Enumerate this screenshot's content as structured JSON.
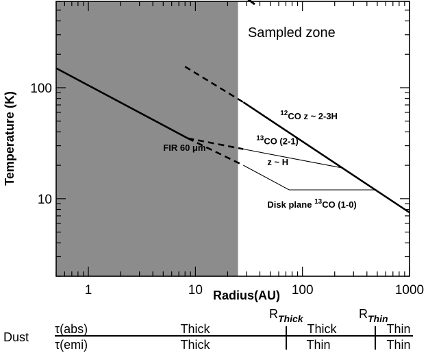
{
  "chart_data": {
    "type": "line",
    "xlabel": "Radius(AU)",
    "ylabel": "Temperature (K)",
    "xscale": "log",
    "yscale": "log",
    "xlim": [
      0.5,
      1000
    ],
    "ylim": [
      2,
      600
    ],
    "x_ticks": [
      {
        "value": 1,
        "label": "1"
      },
      {
        "value": 10,
        "label": "10"
      },
      {
        "value": 100,
        "label": "100"
      },
      {
        "value": 1000,
        "label": "1000"
      }
    ],
    "y_ticks": [
      {
        "value": 10,
        "label": "10"
      },
      {
        "value": 100,
        "label": "100"
      }
    ],
    "shaded_region": {
      "x_from": 0.5,
      "x_to": 25,
      "color": "#8c8c8c"
    },
    "sampled_zone": {
      "label": "Sampled zone",
      "arrow_from_x": 1000,
      "arrow_to_x": 30
    },
    "series": [
      {
        "style": "thick-solid",
        "points": [
          [
            0.5,
            150
          ],
          [
            8.5,
            35
          ]
        ]
      },
      {
        "style": "thick-dashed",
        "points": [
          [
            8.5,
            35
          ],
          [
            28,
            28
          ]
        ]
      },
      {
        "style": "thick-dashed",
        "points": [
          [
            8.5,
            35
          ],
          [
            28,
            20
          ]
        ]
      },
      {
        "style": "thick-dashed",
        "points": [
          [
            8,
            155
          ],
          [
            28,
            74
          ]
        ]
      },
      {
        "style": "thick-solid",
        "points": [
          [
            28,
            74
          ],
          [
            1000,
            7.5
          ]
        ]
      },
      {
        "style": "thin-solid",
        "points": [
          [
            28,
            28
          ],
          [
            230,
            19
          ]
        ]
      },
      {
        "style": "thin-solid",
        "points": [
          [
            28,
            20
          ],
          [
            75,
            12
          ],
          [
            480,
            12
          ]
        ]
      }
    ],
    "annotations": [
      {
        "text": "Sampled zone",
        "x": 70,
        "y": 450
      },
      {
        "text": "FIR 60 μm",
        "x": 5,
        "y": 27
      },
      {
        "main": "CO  z ~ 2-3H",
        "sup": "12",
        "x": 62,
        "y": 52
      },
      {
        "main": "CO (2-1)",
        "sup": "13",
        "x": 37,
        "y": 31
      },
      {
        "text": "z ~ H",
        "x": 47,
        "y": 20
      },
      {
        "main": "Disk plane ",
        "sup": "13",
        "tail": "CO (1-0)",
        "x": 47,
        "y": 8.3
      }
    ]
  },
  "dust_table": {
    "label": "Dust",
    "row1_label": "τ(abs)",
    "row2_label": "τ(emi)",
    "boundaries": [
      {
        "sub": "Thick",
        "prefix": "R"
      },
      {
        "sub": "Thin",
        "prefix": "R"
      }
    ],
    "row1_values": [
      "Thick",
      "Thick",
      "Thin"
    ],
    "row2_values": [
      "Thick",
      "Thin",
      "Thin"
    ]
  }
}
